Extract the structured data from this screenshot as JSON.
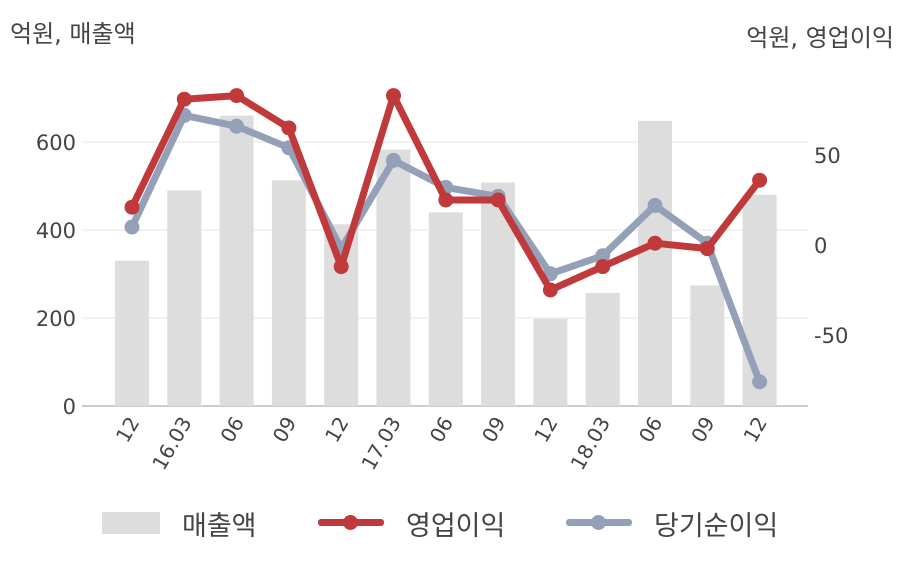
{
  "chart_data": {
    "type": "bar+line",
    "left_axis_label": "억원, 매출액",
    "right_axis_label": "억원, 영업이익",
    "categories": [
      "12",
      "16.03",
      "06",
      "09",
      "12",
      "17.03",
      "06",
      "09",
      "12",
      "18.03",
      "06",
      "09",
      "12"
    ],
    "left_ticks": [
      "0",
      "200",
      "400",
      "600"
    ],
    "right_ticks": [
      "50",
      "0",
      "-50"
    ],
    "left_range": [
      0,
      700
    ],
    "right_range": [
      -90,
      80
    ],
    "grid": true,
    "legend_position": "bottom",
    "series": [
      {
        "name": "매출액",
        "kind": "bar",
        "axis": "left",
        "color": "#dddddd",
        "values": [
          330,
          490,
          660,
          513,
          413,
          583,
          440,
          508,
          198,
          257,
          648,
          274,
          480
        ]
      },
      {
        "name": "영업이익",
        "kind": "line",
        "axis": "right",
        "color": "#c0393b",
        "values": [
          21,
          81,
          83,
          65,
          -12,
          83,
          25,
          25,
          -25,
          -12,
          1,
          -2,
          36
        ]
      },
      {
        "name": "당기순이익",
        "kind": "line",
        "axis": "right",
        "color": "#949fb8",
        "values": [
          10,
          72,
          66,
          54,
          -2,
          47,
          32,
          27,
          -16,
          -6,
          22,
          1,
          -76
        ]
      }
    ]
  }
}
